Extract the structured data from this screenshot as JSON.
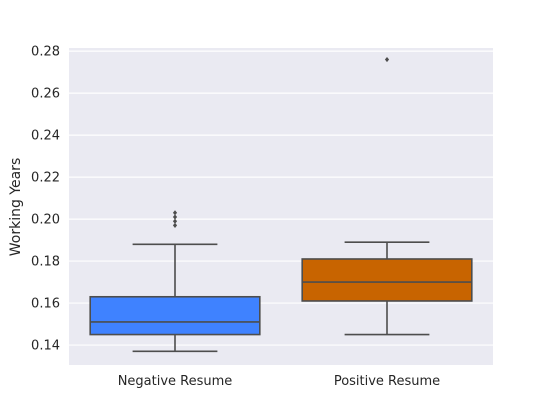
{
  "chart_data": {
    "type": "box",
    "title": "",
    "xlabel": "",
    "ylabel": "Working Years",
    "ylim": [
      0.1305,
      0.2815
    ],
    "yticks": [
      0.14,
      0.16,
      0.18,
      0.2,
      0.22,
      0.24,
      0.26,
      0.28
    ],
    "ytick_labels": [
      "0.14",
      "0.16",
      "0.18",
      "0.20",
      "0.22",
      "0.24",
      "0.26",
      "0.28"
    ],
    "grid": true,
    "legend": "none",
    "background_color": "#eaeaf2",
    "grid_color": "#ffffff",
    "line_color": "#4d4d4d",
    "categories": [
      "Negative Resume",
      "Positive Resume"
    ],
    "boxes": [
      {
        "category": "Negative Resume",
        "color": "#3f82ff",
        "whisker_low": 0.137,
        "q1": 0.145,
        "median": 0.151,
        "q3": 0.163,
        "whisker_high": 0.188,
        "outliers": [
          0.197,
          0.199,
          0.201,
          0.203
        ]
      },
      {
        "category": "Positive Resume",
        "color": "#c86400",
        "whisker_low": 0.145,
        "q1": 0.161,
        "median": 0.17,
        "q3": 0.181,
        "whisker_high": 0.189,
        "outliers": [
          0.276
        ]
      }
    ]
  }
}
